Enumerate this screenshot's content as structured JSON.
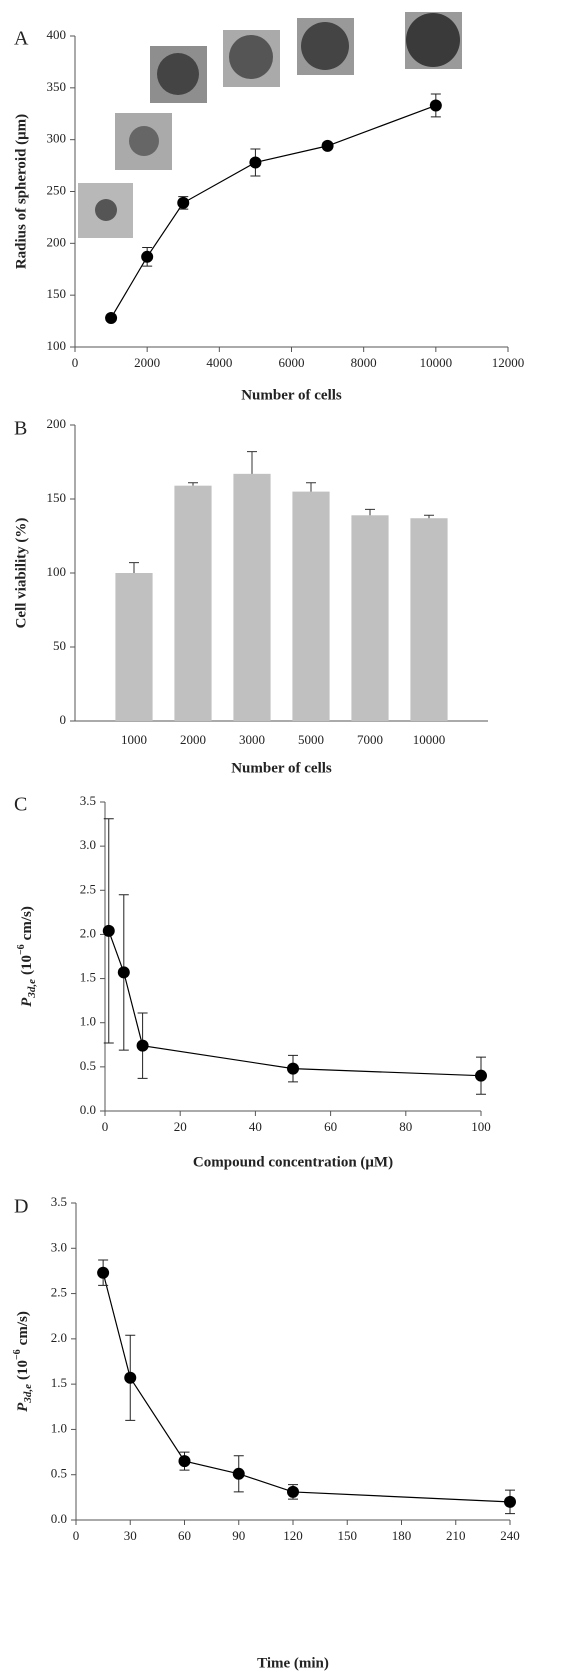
{
  "chart_data": [
    {
      "type": "line",
      "panel_label": "A",
      "x_label": "Number of cells",
      "y_label": "Radius of spheroid (μm)",
      "x": [
        1000,
        2000,
        3000,
        5000,
        7000,
        10000
      ],
      "values": [
        128,
        187,
        239,
        278,
        294,
        333
      ],
      "errors": [
        2,
        9,
        6,
        13,
        3,
        11
      ],
      "xlim": [
        0,
        12000
      ],
      "xticks": [
        0,
        2000,
        4000,
        6000,
        8000,
        10000,
        12000
      ],
      "ylim": [
        100,
        400
      ],
      "yticks": [
        100,
        150,
        200,
        250,
        300,
        350,
        400
      ],
      "color": "#000000"
    },
    {
      "type": "bar",
      "panel_label": "B",
      "x_label": "Number of cells",
      "y_label": "Cell viability (%)",
      "categories": [
        "1000",
        "2000",
        "3000",
        "5000",
        "7000",
        "10000"
      ],
      "values": [
        100,
        159,
        167,
        155,
        139,
        137
      ],
      "errors": [
        7,
        2,
        15,
        6,
        4,
        2
      ],
      "ylim": [
        0,
        200
      ],
      "yticks": [
        0,
        50,
        100,
        150,
        200
      ],
      "color": "#c0c0c0"
    },
    {
      "type": "line",
      "panel_label": "C",
      "x_label": "Compound concentration (μM)",
      "y_label": {
        "symbol": "P",
        "subscript": "3d,e",
        "unit_base": "(10",
        "unit_exponent": "−6",
        "unit_rest": "cm/s)"
      },
      "x": [
        1,
        5,
        10,
        50,
        100
      ],
      "values": [
        2.04,
        1.57,
        0.74,
        0.48,
        0.4
      ],
      "errors": [
        1.27,
        0.88,
        0.37,
        0.15,
        0.21
      ],
      "xlim": [
        0,
        100
      ],
      "xticks": [
        0,
        20,
        40,
        60,
        80,
        100
      ],
      "ylim": [
        0,
        3.5
      ],
      "yticks": [
        {
          "value": 0,
          "label": "0.0"
        },
        0.5,
        {
          "value": 1,
          "label": "1.0"
        },
        1.5,
        {
          "value": 2,
          "label": "2.0"
        },
        2.5,
        {
          "value": 3,
          "label": "3.0"
        },
        3.5
      ],
      "color": "#000000"
    },
    {
      "type": "line",
      "panel_label": "D",
      "x_label": "Time (min)",
      "y_label": {
        "symbol": "P",
        "subscript": "3d,e",
        "unit_base": "(10",
        "unit_exponent": "−6",
        "unit_rest": "cm/s)"
      },
      "x": [
        15,
        30,
        60,
        90,
        120,
        240
      ],
      "values": [
        2.73,
        1.57,
        0.65,
        0.51,
        0.31,
        0.2
      ],
      "errors": [
        0.14,
        0.47,
        0.1,
        0.2,
        0.08,
        0.13
      ],
      "xlim": [
        0,
        240
      ],
      "xticks": [
        0,
        30,
        60,
        90,
        120,
        150,
        180,
        210,
        240
      ],
      "ylim": [
        0,
        3.5
      ],
      "yticks": [
        {
          "value": 0,
          "label": "0.0"
        },
        0.5,
        {
          "value": 1,
          "label": "1.0"
        },
        1.5,
        {
          "value": 2,
          "label": "2.0"
        },
        2.5,
        {
          "value": 3,
          "label": "3.0"
        },
        3.5
      ],
      "color": "#000000"
    }
  ]
}
